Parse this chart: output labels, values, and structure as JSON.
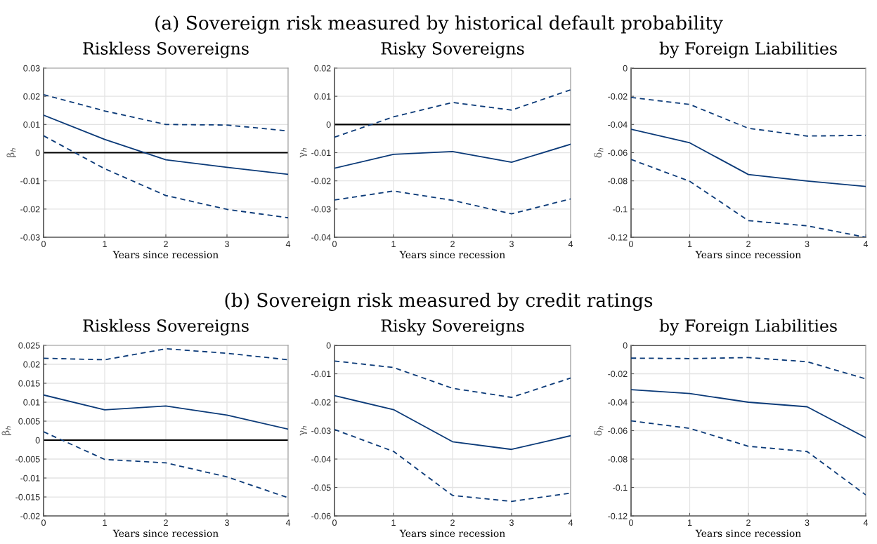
{
  "chart_data": [
    {
      "type": "line",
      "title": "Riskless Sovereigns",
      "annotations": [
        "(a) Sovereign risk measured by historical default probability"
      ],
      "xlabel": "Years since recession",
      "ylabel": "β$_{h}$",
      "x": [
        0,
        1,
        2,
        3,
        4
      ],
      "xlim": [
        0,
        4
      ],
      "xticks": [
        0,
        1,
        2,
        3,
        4
      ],
      "ylim": [
        -0.03,
        0.03
      ],
      "yticks": [
        -0.03,
        -0.02,
        -0.01,
        0,
        0.01,
        0.02,
        0.03
      ],
      "grid": true,
      "ref_lines": [
        {
          "axis": "y",
          "value": 0,
          "color": "#000000"
        }
      ],
      "series": [
        {
          "color": "#0b3a78",
          "line_style": "solid",
          "values": [
            0.0133,
            0.0047,
            -0.0025,
            -0.0052,
            -0.0077
          ]
        },
        {
          "color": "#0b3a78",
          "line_style": "dashed",
          "values": [
            0.0206,
            0.0148,
            0.01,
            0.0098,
            0.0077
          ]
        },
        {
          "color": "#0b3a78",
          "line_style": "dashed",
          "values": [
            0.006,
            -0.0057,
            -0.0152,
            -0.0201,
            -0.0231
          ]
        }
      ]
    },
    {
      "type": "line",
      "title": "Risky Sovereigns",
      "xlabel": "Years since recession",
      "ylabel": "γ$_{h}$",
      "x": [
        0,
        1,
        2,
        3,
        4
      ],
      "xlim": [
        0,
        4
      ],
      "xticks": [
        0,
        1,
        2,
        3,
        4
      ],
      "ylim": [
        -0.04,
        0.02
      ],
      "yticks": [
        -0.04,
        -0.03,
        -0.02,
        -0.01,
        0,
        0.01,
        0.02
      ],
      "grid": true,
      "ref_lines": [
        {
          "axis": "y",
          "value": 0,
          "color": "#000000"
        }
      ],
      "series": [
        {
          "color": "#0b3a78",
          "line_style": "solid",
          "values": [
            -0.0155,
            -0.0106,
            -0.0096,
            -0.0134,
            -0.007
          ]
        },
        {
          "color": "#0b3a78",
          "line_style": "dashed",
          "values": [
            -0.0045,
            0.0027,
            0.0078,
            0.0051,
            0.0123
          ]
        },
        {
          "color": "#0b3a78",
          "line_style": "dashed",
          "values": [
            -0.0268,
            -0.0236,
            -0.0269,
            -0.0317,
            -0.0264
          ]
        }
      ]
    },
    {
      "type": "line",
      "title": "by Foreign Liabilities",
      "xlabel": "Years since recession",
      "ylabel": "δ$_{h}$",
      "x": [
        0,
        1,
        2,
        3,
        4
      ],
      "xlim": [
        0,
        4
      ],
      "xticks": [
        0,
        1,
        2,
        3,
        4
      ],
      "ylim": [
        -0.12,
        0
      ],
      "yticks": [
        -0.12,
        -0.1,
        -0.08,
        -0.06,
        -0.04,
        -0.02,
        0
      ],
      "grid": true,
      "ref_lines": [
        {
          "axis": "y",
          "value": 0,
          "color": "#000000"
        }
      ],
      "series": [
        {
          "color": "#0b3a78",
          "line_style": "solid",
          "values": [
            -0.0434,
            -0.053,
            -0.0755,
            -0.0801,
            -0.084
          ]
        },
        {
          "color": "#0b3a78",
          "line_style": "dashed",
          "values": [
            -0.0208,
            -0.0258,
            -0.0427,
            -0.0482,
            -0.0477
          ]
        },
        {
          "color": "#0b3a78",
          "line_style": "dashed",
          "values": [
            -0.0648,
            -0.0803,
            -0.1082,
            -0.1119,
            -0.12
          ]
        }
      ]
    },
    {
      "type": "line",
      "title": "Riskless Sovereigns",
      "annotations": [
        "(b) Sovereign risk measured by credit ratings"
      ],
      "xlabel": "Years since recession",
      "ylabel": "β$_{h}$",
      "x": [
        0,
        1,
        2,
        3,
        4
      ],
      "xlim": [
        0,
        4
      ],
      "xticks": [
        0,
        1,
        2,
        3,
        4
      ],
      "ylim": [
        -0.02,
        0.025
      ],
      "yticks": [
        -0.02,
        -0.015,
        -0.01,
        -0.005,
        0,
        0.005,
        0.01,
        0.015,
        0.02,
        0.025
      ],
      "grid": true,
      "ref_lines": [
        {
          "axis": "y",
          "value": 0,
          "color": "#000000"
        }
      ],
      "series": [
        {
          "color": "#0b3a78",
          "line_style": "solid",
          "values": [
            0.0119,
            0.008,
            0.009,
            0.0066,
            0.0029
          ]
        },
        {
          "color": "#0b3a78",
          "line_style": "dashed",
          "values": [
            0.0216,
            0.0212,
            0.0241,
            0.0229,
            0.0212
          ]
        },
        {
          "color": "#0b3a78",
          "line_style": "dashed",
          "values": [
            0.0022,
            -0.0051,
            -0.006,
            -0.0097,
            -0.0152
          ]
        }
      ]
    },
    {
      "type": "line",
      "title": "Risky Sovereigns",
      "xlabel": "Years since recession",
      "ylabel": "γ$_{h}$",
      "x": [
        0,
        1,
        2,
        3,
        4
      ],
      "xlim": [
        0,
        4
      ],
      "xticks": [
        0,
        1,
        2,
        3,
        4
      ],
      "ylim": [
        -0.06,
        0
      ],
      "yticks": [
        -0.06,
        -0.05,
        -0.04,
        -0.03,
        -0.02,
        -0.01,
        0
      ],
      "grid": true,
      "ref_lines": [
        {
          "axis": "y",
          "value": 0,
          "color": "#000000"
        }
      ],
      "series": [
        {
          "color": "#0b3a78",
          "line_style": "solid",
          "values": [
            -0.0177,
            -0.0226,
            -0.0339,
            -0.0366,
            -0.0318
          ]
        },
        {
          "color": "#0b3a78",
          "line_style": "dashed",
          "values": [
            -0.0055,
            -0.0078,
            -0.0151,
            -0.0183,
            -0.0115
          ]
        },
        {
          "color": "#0b3a78",
          "line_style": "dashed",
          "values": [
            -0.0296,
            -0.0373,
            -0.0528,
            -0.0549,
            -0.052
          ]
        }
      ]
    },
    {
      "type": "line",
      "title": "by Foreign Liabilities",
      "xlabel": "Years since recession",
      "ylabel": "δ$_{h}$",
      "x": [
        0,
        1,
        2,
        3,
        4
      ],
      "xlim": [
        0,
        4
      ],
      "xticks": [
        0,
        1,
        2,
        3,
        4
      ],
      "ylim": [
        -0.12,
        0
      ],
      "yticks": [
        -0.12,
        -0.1,
        -0.08,
        -0.06,
        -0.04,
        -0.02,
        0
      ],
      "grid": true,
      "ref_lines": [
        {
          "axis": "y",
          "value": 0,
          "color": "#000000"
        }
      ],
      "series": [
        {
          "color": "#0b3a78",
          "line_style": "solid",
          "values": [
            -0.0312,
            -0.0339,
            -0.04,
            -0.0432,
            -0.0649
          ]
        },
        {
          "color": "#0b3a78",
          "line_style": "dashed",
          "values": [
            -0.009,
            -0.0093,
            -0.0086,
            -0.0115,
            -0.0236
          ]
        },
        {
          "color": "#0b3a78",
          "line_style": "dashed",
          "values": [
            -0.0531,
            -0.0584,
            -0.071,
            -0.0747,
            -0.1052
          ]
        }
      ]
    }
  ]
}
